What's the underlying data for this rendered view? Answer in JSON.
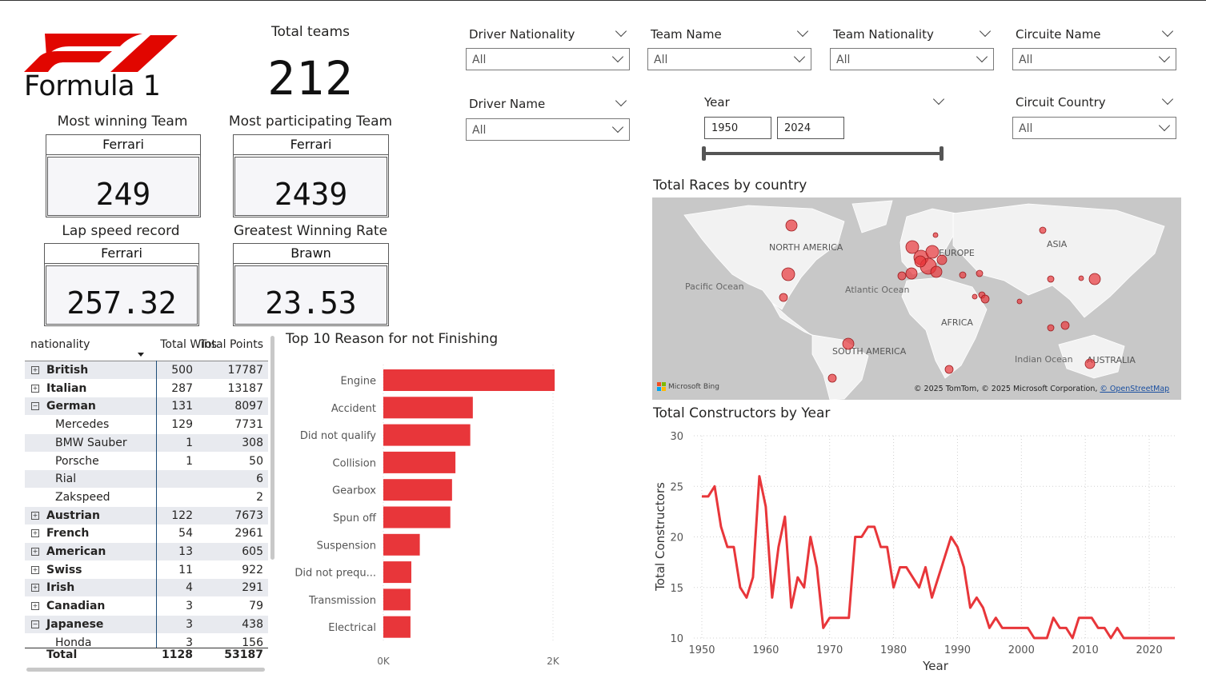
{
  "logo": {
    "text": "Formula 1",
    "color": "#e10600"
  },
  "kpi_total": {
    "title": "Total teams",
    "value": "212"
  },
  "cards": [
    {
      "key": "most_winning",
      "title": "Most winning Team",
      "team": "Ferrari",
      "value": "249"
    },
    {
      "key": "most_participating",
      "title": "Most participating Team",
      "team": "Ferrari",
      "value": "2439"
    },
    {
      "key": "lap_speed",
      "title": "Lap speed record",
      "team": "Ferrari",
      "value": "257.32"
    },
    {
      "key": "winning_rate",
      "title": "Greatest Winning Rate",
      "team": "Brawn",
      "value": "23.53"
    }
  ],
  "slicers": {
    "driver_nationality": {
      "label": "Driver Nationality",
      "value": "All"
    },
    "team_name": {
      "label": "Team Name",
      "value": "All"
    },
    "team_nationality": {
      "label": "Team Nationality",
      "value": "All"
    },
    "circuit_name": {
      "label": "Circuite Name",
      "value": "All"
    },
    "driver_name": {
      "label": "Driver Name",
      "value": "All"
    },
    "year": {
      "label": "Year",
      "from": "1950",
      "to": "2024"
    },
    "circuit_country": {
      "label": "Circuit Country",
      "value": "All"
    }
  },
  "table": {
    "headers": [
      "nationality",
      "Total Wins",
      "Total Points"
    ],
    "rows": [
      {
        "name": "British",
        "wins": "500",
        "points": "17787",
        "level": 0,
        "expander": "⊞"
      },
      {
        "name": "Italian",
        "wins": "287",
        "points": "13187",
        "level": 0,
        "expander": "⊞"
      },
      {
        "name": "German",
        "wins": "131",
        "points": "8097",
        "level": 0,
        "expander": "⊟"
      },
      {
        "name": "Mercedes",
        "wins": "129",
        "points": "7731",
        "level": 1,
        "expander": ""
      },
      {
        "name": "BMW Sauber",
        "wins": "1",
        "points": "308",
        "level": 1,
        "expander": ""
      },
      {
        "name": "Porsche",
        "wins": "1",
        "points": "50",
        "level": 1,
        "expander": ""
      },
      {
        "name": "Rial",
        "wins": "",
        "points": "6",
        "level": 1,
        "expander": ""
      },
      {
        "name": "Zakspeed",
        "wins": "",
        "points": "2",
        "level": 1,
        "expander": ""
      },
      {
        "name": "Austrian",
        "wins": "122",
        "points": "7673",
        "level": 0,
        "expander": "⊞"
      },
      {
        "name": "French",
        "wins": "54",
        "points": "2961",
        "level": 0,
        "expander": "⊞"
      },
      {
        "name": "American",
        "wins": "13",
        "points": "605",
        "level": 0,
        "expander": "⊞"
      },
      {
        "name": "Swiss",
        "wins": "11",
        "points": "922",
        "level": 0,
        "expander": "⊞"
      },
      {
        "name": "Irish",
        "wins": "4",
        "points": "291",
        "level": 0,
        "expander": "⊞"
      },
      {
        "name": "Canadian",
        "wins": "3",
        "points": "79",
        "level": 0,
        "expander": "⊞"
      },
      {
        "name": "Japanese",
        "wins": "3",
        "points": "438",
        "level": 0,
        "expander": "⊟"
      },
      {
        "name": "Honda",
        "wins": "3",
        "points": "156",
        "level": 1,
        "expander": ""
      }
    ],
    "total": {
      "name": "Total",
      "wins": "1128",
      "points": "53187"
    }
  },
  "bar_chart": {
    "title": "Top 10 Reason for not Finishing",
    "color": "#e8363a",
    "chart_data": {
      "type": "bar",
      "orientation": "horizontal",
      "categories": [
        "Engine",
        "Accident",
        "Did not qualify",
        "Collision",
        "Gearbox",
        "Spun off",
        "Suspension",
        "Did not prequ...",
        "Transmission",
        "Electrical"
      ],
      "values": [
        2020,
        1055,
        1025,
        850,
        810,
        790,
        430,
        330,
        320,
        320
      ],
      "xlim": [
        0,
        2000
      ],
      "xticks": [
        "0K",
        "2K"
      ],
      "grid": true
    }
  },
  "map": {
    "title": "Total Races by country",
    "labels": [
      "NORTH AMERICA",
      "EUROPE",
      "ASIA",
      "Pacific Ocean",
      "Atlantic Ocean",
      "AFRICA",
      "SOUTH AMERICA",
      "Indian Ocean",
      "AUSTRALIA"
    ],
    "brand": "Microsoft Bing",
    "attribution": "© 2025 TomTom, © 2025 Microsoft Corporation,",
    "attribution_link": "© OpenStreetMap",
    "bubble_color": "#e8363a"
  },
  "line_chart": {
    "title": "Total Constructors by Year",
    "color": "#e8363a",
    "chart_data": {
      "type": "line",
      "xlabel": "Year",
      "ylabel": "Total Constructors",
      "xlim": [
        1950,
        2024
      ],
      "ylim": [
        10,
        30
      ],
      "xticks": [
        1950,
        1960,
        1970,
        1980,
        1990,
        2000,
        2010,
        2020
      ],
      "yticks": [
        10,
        15,
        20,
        25,
        30
      ],
      "grid": true,
      "x": [
        1950,
        1951,
        1952,
        1953,
        1954,
        1955,
        1956,
        1957,
        1958,
        1959,
        1960,
        1961,
        1962,
        1963,
        1964,
        1965,
        1966,
        1967,
        1968,
        1969,
        1970,
        1971,
        1972,
        1973,
        1974,
        1975,
        1976,
        1977,
        1978,
        1979,
        1980,
        1981,
        1982,
        1983,
        1984,
        1985,
        1986,
        1987,
        1988,
        1989,
        1990,
        1991,
        1992,
        1993,
        1994,
        1995,
        1996,
        1997,
        1998,
        1999,
        2000,
        2001,
        2002,
        2003,
        2004,
        2005,
        2006,
        2007,
        2008,
        2009,
        2010,
        2011,
        2012,
        2013,
        2014,
        2015,
        2016,
        2017,
        2018,
        2019,
        2020,
        2021,
        2022,
        2023,
        2024
      ],
      "y": [
        24,
        24,
        25,
        21,
        19,
        19,
        15,
        14,
        16,
        26,
        23,
        14,
        19,
        22,
        13,
        16,
        15,
        20,
        17,
        11,
        12,
        12,
        12,
        12,
        20,
        20,
        21,
        21,
        19,
        19,
        15,
        17,
        17,
        16,
        15,
        17,
        14,
        16,
        18,
        20,
        19,
        17,
        13,
        14,
        13,
        11,
        12,
        11,
        11,
        11,
        11,
        11,
        10,
        10,
        10,
        12,
        11,
        11,
        10,
        12,
        12,
        12,
        11,
        11,
        10,
        11,
        10,
        10,
        10,
        10,
        10,
        10,
        10,
        10,
        10
      ]
    }
  }
}
